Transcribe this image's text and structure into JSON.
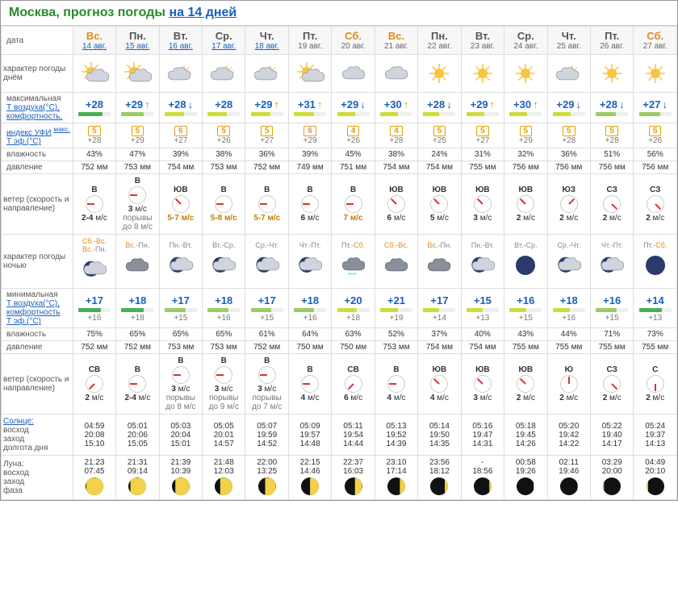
{
  "title_prefix": "Москва, прогноз погоды ",
  "title_link": "на 14 дней",
  "labels": {
    "date": "дата",
    "day_char": "характер погоды днём",
    "tmax": "максимальная",
    "tair": "Т воздуха(°C),",
    "comfort": "комфортность,",
    "ufi": "индекс УФИ",
    "ufi_sup": "макс.",
    "teff": "Т эф.(°C)",
    "humidity": "влажность",
    "pressure": "давление",
    "wind": "ветер (скорость и направление)",
    "night_char": "характер погоды ночью",
    "tmin": "минимальная",
    "sun": "Солнце:",
    "sunrise": "восход",
    "sunset": "заход",
    "daylen": "долгота дня",
    "moon": "Луна:",
    "moonrise": "восход",
    "moonset": "заход",
    "phase": "фаза"
  },
  "colors": {
    "bar_green": "#4caf50",
    "bar_lightgreen": "#9ccc65",
    "bar_yellow": "#cddc39",
    "bar_blue": "#4fc3f7",
    "sun": "#f9c440",
    "cloud": "#d0d4dc",
    "cloud_stroke": "#9aa0aa",
    "night_sky": "#2a3a6a"
  },
  "days": [
    {
      "dow": "Вс.",
      "we": true,
      "date": "14 авг.",
      "link": true,
      "day_icon": "sun-cloud",
      "tmax": "+28",
      "tmax_arr": "",
      "bar_day_color": "#4caf50",
      "bar_day_w": 75,
      "ufi": "5",
      "ufi_hi": false,
      "teff_day": "+28",
      "hum_day": "43%",
      "press_day": "752 мм",
      "wind_day_dir": "В",
      "wind_day_deg": 90,
      "wind_day_spd": "2-4 м/с",
      "wind_day_hi": false,
      "wind_day_gust": "",
      "night_lbl": "Сб.-Вс.",
      "night_alt": "Вс.-Пн.",
      "night_icon": "moon-cloud",
      "tmin": "+17",
      "bar_night_color": "#4caf50",
      "bar_night_w": 70,
      "teff_night": "+16",
      "hum_night": "75%",
      "press_night": "752 мм",
      "wind_night_dir": "СВ",
      "wind_night_deg": 45,
      "wind_night_spd": "2 м/с",
      "wind_night_gust": "",
      "sunrise": "04:59",
      "sunset": "20:08",
      "daylen": "15:10",
      "moonrise": "21:23",
      "moonset": "07:45",
      "moon_phase": 95,
      "moon_side": "right"
    },
    {
      "dow": "Пн.",
      "we": false,
      "date": "15 авг.",
      "link": true,
      "day_icon": "sun-cloud",
      "tmax": "+29",
      "tmax_arr": "up",
      "bar_day_color": "#9ccc65",
      "bar_day_w": 70,
      "ufi": "5",
      "ufi_hi": false,
      "teff_day": "+29",
      "hum_day": "47%",
      "press_day": "753 мм",
      "wind_day_dir": "В",
      "wind_day_deg": 90,
      "wind_day_spd": "3 м/с",
      "wind_day_hi": false,
      "wind_day_gust": "порывы до 8 м/с",
      "night_lbl": "Вс.-Пн.",
      "night_alt": "",
      "night_icon": "cloud-dark",
      "tmin": "+18",
      "bar_night_color": "#4caf50",
      "bar_night_w": 70,
      "teff_night": "+18",
      "hum_night": "65%",
      "press_night": "752 мм",
      "wind_night_dir": "В",
      "wind_night_deg": 90,
      "wind_night_spd": "2-4 м/с",
      "wind_night_gust": "",
      "sunrise": "05:01",
      "sunset": "20:06",
      "daylen": "15:05",
      "moonrise": "21:31",
      "moonset": "09:14",
      "moon_phase": 90,
      "moon_side": "right"
    },
    {
      "dow": "Вт.",
      "we": false,
      "date": "16 авг.",
      "link": true,
      "day_icon": "cloud-sun",
      "tmax": "+28",
      "tmax_arr": "down",
      "bar_day_color": "#cddc39",
      "bar_day_w": 60,
      "ufi": "6",
      "ufi_hi": true,
      "teff_day": "+27",
      "hum_day": "39%",
      "press_day": "754 мм",
      "wind_day_dir": "ЮВ",
      "wind_day_deg": 135,
      "wind_day_spd": "5-7 м/с",
      "wind_day_hi": true,
      "wind_day_gust": "",
      "night_lbl": "Пн.-Вт.",
      "night_alt": "",
      "night_icon": "moon-cloud",
      "tmin": "+17",
      "bar_night_color": "#9ccc65",
      "bar_night_w": 65,
      "teff_night": "+15",
      "hum_night": "65%",
      "press_night": "753 мм",
      "wind_night_dir": "В",
      "wind_night_deg": 90,
      "wind_night_spd": "3 м/с",
      "wind_night_gust": "порывы до 8 м/с",
      "sunrise": "05:03",
      "sunset": "20:04",
      "daylen": "15:01",
      "moonrise": "21:39",
      "moonset": "10:39",
      "moon_phase": 80,
      "moon_side": "right"
    },
    {
      "dow": "Ср.",
      "we": false,
      "date": "17 авг.",
      "link": true,
      "day_icon": "cloud-sun",
      "tmax": "+28",
      "tmax_arr": "",
      "bar_day_color": "#cddc39",
      "bar_day_w": 60,
      "ufi": "5",
      "ufi_hi": false,
      "teff_day": "+26",
      "hum_day": "38%",
      "press_day": "753 мм",
      "wind_day_dir": "В",
      "wind_day_deg": 90,
      "wind_day_spd": "5-8 м/с",
      "wind_day_hi": true,
      "wind_day_gust": "",
      "night_lbl": "Вт.-Ср.",
      "night_alt": "",
      "night_icon": "moon-cloud",
      "tmin": "+18",
      "bar_night_color": "#9ccc65",
      "bar_night_w": 65,
      "teff_night": "+16",
      "hum_night": "65%",
      "press_night": "753 мм",
      "wind_night_dir": "В",
      "wind_night_deg": 90,
      "wind_night_spd": "3 м/с",
      "wind_night_gust": "порывы до 9 м/с",
      "sunrise": "05:05",
      "sunset": "20:01",
      "daylen": "14:57",
      "moonrise": "21:48",
      "moonset": "12:03",
      "moon_phase": 70,
      "moon_side": "right"
    },
    {
      "dow": "Чт.",
      "we": false,
      "date": "18 авг.",
      "link": true,
      "day_icon": "cloud-sun",
      "tmax": "+29",
      "tmax_arr": "up",
      "bar_day_color": "#cddc39",
      "bar_day_w": 60,
      "ufi": "5",
      "ufi_hi": false,
      "teff_day": "+27",
      "hum_day": "36%",
      "press_day": "752 мм",
      "wind_day_dir": "В",
      "wind_day_deg": 90,
      "wind_day_spd": "5-7 м/с",
      "wind_day_hi": true,
      "wind_day_gust": "",
      "night_lbl": "Ср.-Чт.",
      "night_alt": "",
      "night_icon": "moon-cloud",
      "tmin": "+17",
      "bar_night_color": "#9ccc65",
      "bar_night_w": 62,
      "teff_night": "+15",
      "hum_night": "61%",
      "press_night": "752 мм",
      "wind_night_dir": "В",
      "wind_night_deg": 90,
      "wind_night_spd": "3 м/с",
      "wind_night_gust": "порывы до 7 м/с",
      "sunrise": "05:07",
      "sunset": "19:59",
      "daylen": "14:52",
      "moonrise": "22:00",
      "moonset": "13:25",
      "moon_phase": 60,
      "moon_side": "right"
    },
    {
      "dow": "Пт.",
      "we": false,
      "date": "19 авг.",
      "link": false,
      "day_icon": "sun-cloud",
      "tmax": "+31",
      "tmax_arr": "up",
      "bar_day_color": "#cddc39",
      "bar_day_w": 62,
      "ufi": "6",
      "ufi_hi": true,
      "teff_day": "+29",
      "hum_day": "39%",
      "press_day": "749 мм",
      "wind_day_dir": "В",
      "wind_day_deg": 90,
      "wind_day_spd": "6 м/с",
      "wind_day_hi": false,
      "wind_day_gust": "",
      "night_lbl": "Чт.-Пт.",
      "night_alt": "",
      "night_icon": "moon-cloud",
      "tmin": "+18",
      "bar_night_color": "#9ccc65",
      "bar_night_w": 62,
      "teff_night": "+16",
      "hum_night": "64%",
      "press_night": "750 мм",
      "wind_night_dir": "В",
      "wind_night_deg": 90,
      "wind_night_spd": "4 м/с",
      "wind_night_gust": "",
      "sunrise": "05:09",
      "sunset": "19:57",
      "daylen": "14:48",
      "moonrise": "22:15",
      "moonset": "14:46",
      "moon_phase": 50,
      "moon_side": "right"
    },
    {
      "dow": "Сб.",
      "we": true,
      "date": "20 авг.",
      "link": false,
      "day_icon": "cloud",
      "tmax": "+29",
      "tmax_arr": "down",
      "bar_day_color": "#cddc39",
      "bar_day_w": 55,
      "ufi": "4",
      "ufi_hi": false,
      "teff_day": "+26",
      "hum_day": "45%",
      "press_day": "751 мм",
      "wind_day_dir": "В",
      "wind_day_deg": 90,
      "wind_day_spd": "7 м/с",
      "wind_day_hi": true,
      "wind_day_gust": "",
      "night_lbl": "Пт.-Сб.",
      "night_alt": "",
      "night_icon": "cloud-rain",
      "tmin": "+20",
      "bar_night_color": "#cddc39",
      "bar_night_w": 60,
      "teff_night": "+18",
      "hum_night": "63%",
      "press_night": "750 мм",
      "wind_night_dir": "СВ",
      "wind_night_deg": 45,
      "wind_night_spd": "6 м/с",
      "wind_night_gust": "",
      "sunrise": "05:11",
      "sunset": "19:54",
      "daylen": "14:44",
      "moonrise": "22:37",
      "moonset": "16:03",
      "moon_phase": 40,
      "moon_side": "right"
    },
    {
      "dow": "Вс.",
      "we": true,
      "date": "21 авг.",
      "link": false,
      "day_icon": "cloud",
      "tmax": "+30",
      "tmax_arr": "up",
      "bar_day_color": "#cddc39",
      "bar_day_w": 55,
      "ufi": "4",
      "ufi_hi": false,
      "teff_day": "+28",
      "hum_day": "38%",
      "press_day": "754 мм",
      "wind_day_dir": "ЮВ",
      "wind_day_deg": 135,
      "wind_day_spd": "6 м/с",
      "wind_day_hi": false,
      "wind_day_gust": "",
      "night_lbl": "Сб.-Вс.",
      "night_alt": "",
      "night_icon": "cloud-dark",
      "tmin": "+21",
      "bar_night_color": "#cddc39",
      "bar_night_w": 55,
      "teff_night": "+19",
      "hum_night": "52%",
      "press_night": "753 мм",
      "wind_night_dir": "В",
      "wind_night_deg": 90,
      "wind_night_spd": "4 м/с",
      "wind_night_gust": "",
      "sunrise": "05:13",
      "sunset": "19:52",
      "daylen": "14:39",
      "moonrise": "23:10",
      "moonset": "17:14",
      "moon_phase": 30,
      "moon_side": "right"
    },
    {
      "dow": "Пн.",
      "we": false,
      "date": "22 авг.",
      "link": false,
      "day_icon": "sun",
      "tmax": "+28",
      "tmax_arr": "down",
      "bar_day_color": "#cddc39",
      "bar_day_w": 50,
      "ufi": "5",
      "ufi_hi": false,
      "teff_day": "+25",
      "hum_day": "24%",
      "press_day": "754 мм",
      "wind_day_dir": "ЮВ",
      "wind_day_deg": 135,
      "wind_day_spd": "5 м/с",
      "wind_day_hi": false,
      "wind_day_gust": "",
      "night_lbl": "Вс.-Пн.",
      "night_alt": "",
      "night_icon": "cloud-dark",
      "tmin": "+17",
      "bar_night_color": "#cddc39",
      "bar_night_w": 50,
      "teff_night": "+14",
      "hum_night": "37%",
      "press_night": "754 мм",
      "wind_night_dir": "ЮВ",
      "wind_night_deg": 135,
      "wind_night_spd": "4 м/с",
      "wind_night_gust": "",
      "sunrise": "05:14",
      "sunset": "19:50",
      "daylen": "14:35",
      "moonrise": "23:56",
      "moonset": "18:12",
      "moon_phase": 20,
      "moon_side": "right"
    },
    {
      "dow": "Вт.",
      "we": false,
      "date": "23 авг.",
      "link": false,
      "day_icon": "sun",
      "tmax": "+29",
      "tmax_arr": "up",
      "bar_day_color": "#cddc39",
      "bar_day_w": 55,
      "ufi": "5",
      "ufi_hi": false,
      "teff_day": "+27",
      "hum_day": "31%",
      "press_day": "755 мм",
      "wind_day_dir": "ЮВ",
      "wind_day_deg": 135,
      "wind_day_spd": "3 м/с",
      "wind_day_hi": false,
      "wind_day_gust": "",
      "night_lbl": "Пн.-Вт.",
      "night_alt": "",
      "night_icon": "moon-cloud",
      "tmin": "+15",
      "bar_night_color": "#cddc39",
      "bar_night_w": 50,
      "teff_night": "+13",
      "hum_night": "40%",
      "press_night": "754 мм",
      "wind_night_dir": "ЮВ",
      "wind_night_deg": 135,
      "wind_night_spd": "3 м/с",
      "wind_night_gust": "",
      "sunrise": "05:16",
      "sunset": "19:47",
      "daylen": "14:31",
      "moonrise": "-",
      "moonset": "18:56",
      "moon_phase": 12,
      "moon_side": "right"
    },
    {
      "dow": "Ср.",
      "we": false,
      "date": "24 авг.",
      "link": false,
      "day_icon": "sun",
      "tmax": "+30",
      "tmax_arr": "up",
      "bar_day_color": "#cddc39",
      "bar_day_w": 55,
      "ufi": "5",
      "ufi_hi": false,
      "teff_day": "+29",
      "hum_day": "32%",
      "press_day": "756 мм",
      "wind_day_dir": "ЮВ",
      "wind_day_deg": 135,
      "wind_day_spd": "2 м/с",
      "wind_day_hi": false,
      "wind_day_gust": "",
      "night_lbl": "Вт.-Ср.",
      "night_alt": "",
      "night_icon": "moon-clear",
      "tmin": "+16",
      "bar_night_color": "#cddc39",
      "bar_night_w": 52,
      "teff_night": "+15",
      "hum_night": "43%",
      "press_night": "755 мм",
      "wind_night_dir": "ЮВ",
      "wind_night_deg": 135,
      "wind_night_spd": "2 м/с",
      "wind_night_gust": "",
      "sunrise": "05:18",
      "sunset": "19:45",
      "daylen": "14:26",
      "moonrise": "00:58",
      "moonset": "19:26",
      "moon_phase": 6,
      "moon_side": "right"
    },
    {
      "dow": "Чт.",
      "we": false,
      "date": "25 авг.",
      "link": false,
      "day_icon": "cloud-sun",
      "tmax": "+29",
      "tmax_arr": "down",
      "bar_day_color": "#cddc39",
      "bar_night_w": 52,
      "bar_day_w": 55,
      "ufi": "5",
      "ufi_hi": false,
      "teff_day": "+28",
      "hum_day": "36%",
      "press_day": "756 мм",
      "wind_day_dir": "ЮЗ",
      "wind_day_deg": 225,
      "wind_day_spd": "2 м/с",
      "wind_day_hi": false,
      "wind_day_gust": "",
      "night_lbl": "Ср.-Чт.",
      "night_alt": "",
      "night_icon": "moon-cloud",
      "tmin": "+18",
      "bar_night_color": "#cddc39",
      "teff_night": "+16",
      "hum_night": "44%",
      "press_night": "755 мм",
      "wind_night_dir": "Ю",
      "wind_night_deg": 180,
      "wind_night_spd": "2 м/с",
      "wind_night_gust": "",
      "sunrise": "05:20",
      "sunset": "19:42",
      "daylen": "14:22",
      "moonrise": "02:11",
      "moonset": "19:46",
      "moon_phase": 2,
      "moon_side": "right"
    },
    {
      "dow": "Пт.",
      "we": false,
      "date": "26 авг.",
      "link": false,
      "day_icon": "sun",
      "tmax": "+28",
      "tmax_arr": "down",
      "bar_day_color": "#9ccc65",
      "bar_day_w": 62,
      "ufi": "5",
      "ufi_hi": false,
      "teff_day": "+28",
      "hum_day": "51%",
      "press_day": "756 мм",
      "wind_day_dir": "СЗ",
      "wind_day_deg": 315,
      "wind_day_spd": "2 м/с",
      "wind_day_hi": false,
      "wind_day_gust": "",
      "night_lbl": "Чт.-Пт.",
      "night_alt": "",
      "night_icon": "moon-cloud",
      "tmin": "+16",
      "bar_night_color": "#9ccc65",
      "bar_night_w": 65,
      "teff_night": "+15",
      "hum_night": "71%",
      "press_night": "755 мм",
      "wind_night_dir": "СЗ",
      "wind_night_deg": 315,
      "wind_night_spd": "2 м/с",
      "wind_night_gust": "",
      "sunrise": "05:22",
      "sunset": "19:40",
      "daylen": "14:17",
      "moonrise": "03:29",
      "moonset": "20:00",
      "moon_phase": 5,
      "moon_side": "left"
    },
    {
      "dow": "Сб.",
      "we": true,
      "date": "27 авг.",
      "link": false,
      "day_icon": "sun",
      "tmax": "+27",
      "tmax_arr": "down",
      "bar_day_color": "#9ccc65",
      "bar_day_w": 65,
      "ufi": "5",
      "ufi_hi": false,
      "teff_day": "+26",
      "hum_day": "56%",
      "press_day": "756 мм",
      "wind_day_dir": "СЗ",
      "wind_day_deg": 315,
      "wind_day_spd": "2 м/с",
      "wind_day_hi": false,
      "wind_day_gust": "",
      "night_lbl": "Пт.-Сб.",
      "night_alt": "",
      "night_icon": "moon-clear",
      "tmin": "+14",
      "bar_night_color": "#4caf50",
      "bar_night_w": 70,
      "teff_night": "+13",
      "hum_night": "73%",
      "press_night": "755 мм",
      "wind_night_dir": "С",
      "wind_night_deg": 0,
      "wind_night_spd": "2 м/с",
      "wind_night_gust": "",
      "sunrise": "05:24",
      "sunset": "19:37",
      "daylen": "14:13",
      "moonrise": "04:49",
      "moonset": "20:10",
      "moon_phase": 10,
      "moon_side": "left"
    }
  ]
}
